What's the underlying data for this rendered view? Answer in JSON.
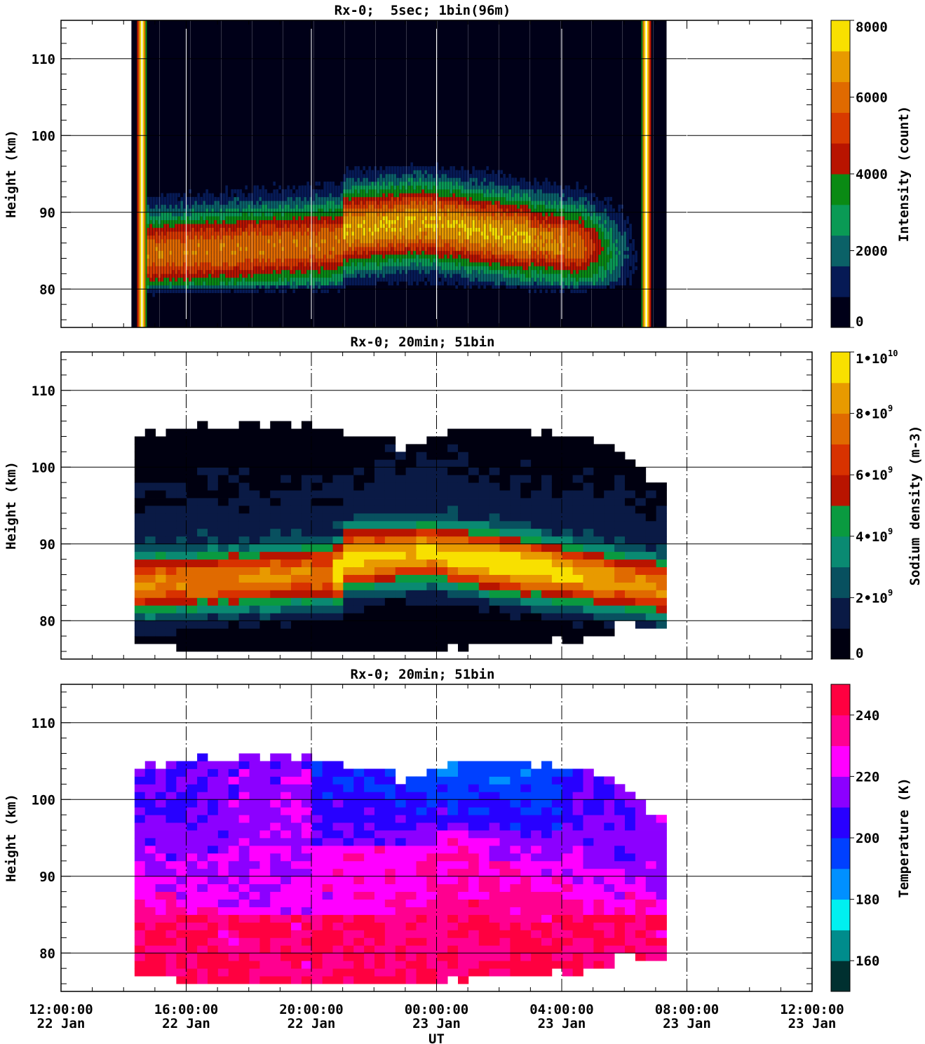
{
  "chart_data": [
    {
      "type": "heatmap",
      "title": "Rx-0;  5sec; 1bin(96m)",
      "ylabel": "Height (km)",
      "colorbar_label": "Intensity (count)",
      "colorbar_ticks": [
        "0",
        "2000",
        "4000",
        "6000",
        "8000"
      ],
      "colorbar_range": [
        0,
        8000
      ],
      "colorbar_colors": [
        "#000018",
        "#061a55",
        "#0b6167",
        "#0a9a55",
        "#0a8a14",
        "#b81400",
        "#d83a00",
        "#e06a00",
        "#e89a00",
        "#f8e000"
      ],
      "y_ticks": [
        "80",
        "90",
        "100",
        "110"
      ],
      "ylim": [
        75,
        115
      ],
      "xlim_hours": [
        0,
        24
      ],
      "x_ticks_hours": [
        0,
        4,
        8,
        12,
        16,
        20,
        24
      ],
      "data_span_hours": [
        2.25,
        19.35
      ],
      "layer": {
        "bottom_km": 80,
        "top_km": 98,
        "peak_km": 85,
        "peak_intensity": 6500
      }
    },
    {
      "type": "heatmap",
      "title": "Rx-0; 20min; 51bin",
      "ylabel": "Height (km)",
      "colorbar_label": "Sodium density (m-3)",
      "colorbar_ticks": [
        "0",
        "2•10",
        "4•10",
        "6•10",
        "8•10",
        "1•10"
      ],
      "colorbar_exponents": [
        "",
        "9",
        "9",
        "9",
        "9",
        "10"
      ],
      "colorbar_range": [
        0,
        10000000000
      ],
      "colorbar_colors": [
        "#000010",
        "#0a1a45",
        "#08505f",
        "#0a8a72",
        "#0a9a40",
        "#b81400",
        "#d83200",
        "#e06a00",
        "#e89a00",
        "#f8e000"
      ],
      "y_ticks": [
        "80",
        "90",
        "100",
        "110"
      ],
      "ylim": [
        75,
        115
      ],
      "data_span_hours": [
        2.35,
        19.35
      ],
      "layer": {
        "bottom_km": 77,
        "top_km": 106,
        "peak_km": 86,
        "peak_density": 9500000000
      }
    },
    {
      "type": "heatmap",
      "title": "Rx-0; 20min; 51bin",
      "ylabel": "Height (km)",
      "xlabel": "UT",
      "colorbar_label": "Temperature (K)",
      "colorbar_ticks": [
        "160",
        "180",
        "200",
        "220",
        "240"
      ],
      "colorbar_range": [
        150,
        250
      ],
      "colorbar_colors": [
        "#003030",
        "#008c8c",
        "#00f0f0",
        "#0090ff",
        "#0040ff",
        "#2800ff",
        "#8c00ff",
        "#ff00ff",
        "#ff0090",
        "#ff0040"
      ],
      "y_ticks": [
        "80",
        "90",
        "100",
        "110"
      ],
      "ylim": [
        75,
        115
      ],
      "data_span_hours": [
        2.35,
        19.35
      ],
      "x_tick_labels": [
        {
          "time": "12:00:00",
          "date": "22 Jan"
        },
        {
          "time": "16:00:00",
          "date": "22 Jan"
        },
        {
          "time": "20:00:00",
          "date": "22 Jan"
        },
        {
          "time": "00:00:00",
          "date": "23 Jan"
        },
        {
          "time": "04:00:00",
          "date": "23 Jan"
        },
        {
          "time": "08:00:00",
          "date": "23 Jan"
        },
        {
          "time": "12:00:00",
          "date": "23 Jan"
        }
      ]
    }
  ]
}
